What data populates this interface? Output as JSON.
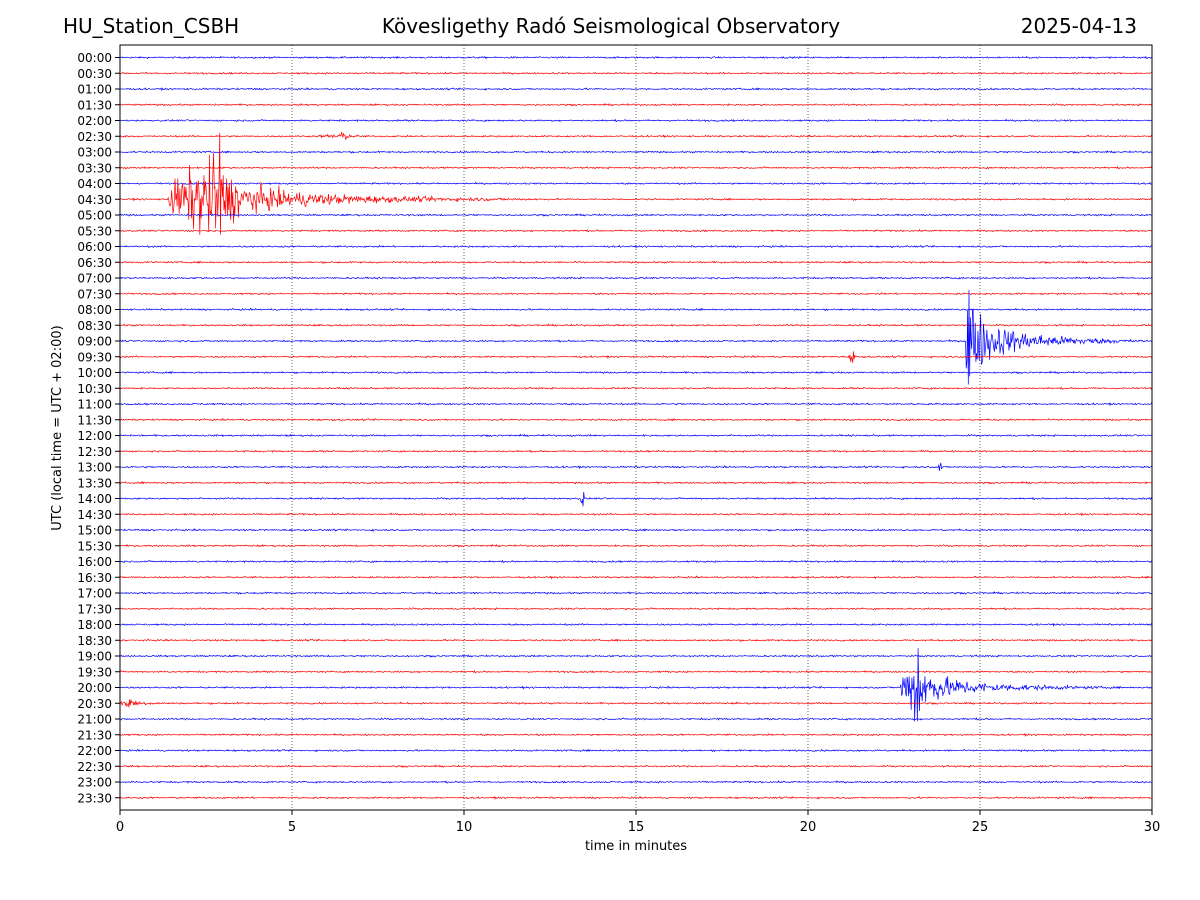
{
  "header": {
    "station": "HU_Station_CSBH",
    "observatory": "Kövesligethy Radó Seismological Observatory",
    "date": "2025-04-13"
  },
  "chart_data": {
    "type": "line",
    "title": "Kövesligethy Radó Seismological Observatory",
    "xlabel": "time in minutes",
    "ylabel": "UTC (local time = UTC + 02:00)",
    "xlim": [
      0,
      30
    ],
    "xticks": [
      0,
      5,
      10,
      15,
      20,
      25,
      30
    ],
    "rows": [
      "00:00",
      "00:30",
      "01:00",
      "01:30",
      "02:00",
      "02:30",
      "03:00",
      "03:30",
      "04:00",
      "04:30",
      "05:00",
      "05:30",
      "06:00",
      "06:30",
      "07:00",
      "07:30",
      "08:00",
      "08:30",
      "09:00",
      "09:30",
      "10:00",
      "10:30",
      "11:00",
      "11:30",
      "12:00",
      "12:30",
      "13:00",
      "13:30",
      "14:00",
      "14:30",
      "15:00",
      "15:30",
      "16:00",
      "16:30",
      "17:00",
      "17:30",
      "18:00",
      "18:30",
      "19:00",
      "19:30",
      "20:00",
      "20:30",
      "21:00",
      "21:30",
      "22:00",
      "22:30",
      "23:00",
      "23:30"
    ],
    "colors": {
      "hour_trace": "#0000ff",
      "half_hour_trace": "#ff0000"
    },
    "grid": "vertical dotted at x ticks",
    "events": [
      {
        "row": "04:30",
        "start_min": 1.4,
        "peak_min": 2.9,
        "end_min": 13.5,
        "peak_amplitude": 3.0
      },
      {
        "row": "09:00",
        "start_min": 24.6,
        "peak_min": 24.65,
        "end_min": 30,
        "peak_amplitude": 5.0
      },
      {
        "row": "20:00",
        "start_min": 22.7,
        "peak_min": 23.2,
        "end_min": 30,
        "peak_amplitude": 2.6
      },
      {
        "row": "20:30",
        "start_min": 0,
        "peak_min": 0.3,
        "end_min": 4.5,
        "peak_amplitude": 0.4
      },
      {
        "row": "02:30",
        "start_min": 5.8,
        "peak_min": 6.5,
        "end_min": 10.5,
        "peak_amplitude": 0.25
      },
      {
        "row": "14:00",
        "start_min": 13.4,
        "peak_min": 13.45,
        "end_min": 13.6,
        "peak_amplitude": 0.5
      },
      {
        "row": "13:00",
        "start_min": 23.8,
        "peak_min": 23.85,
        "end_min": 24.0,
        "peak_amplitude": 0.4
      },
      {
        "row": "09:30",
        "start_min": 21.2,
        "peak_min": 21.3,
        "end_min": 21.6,
        "peak_amplitude": 0.5
      }
    ]
  }
}
